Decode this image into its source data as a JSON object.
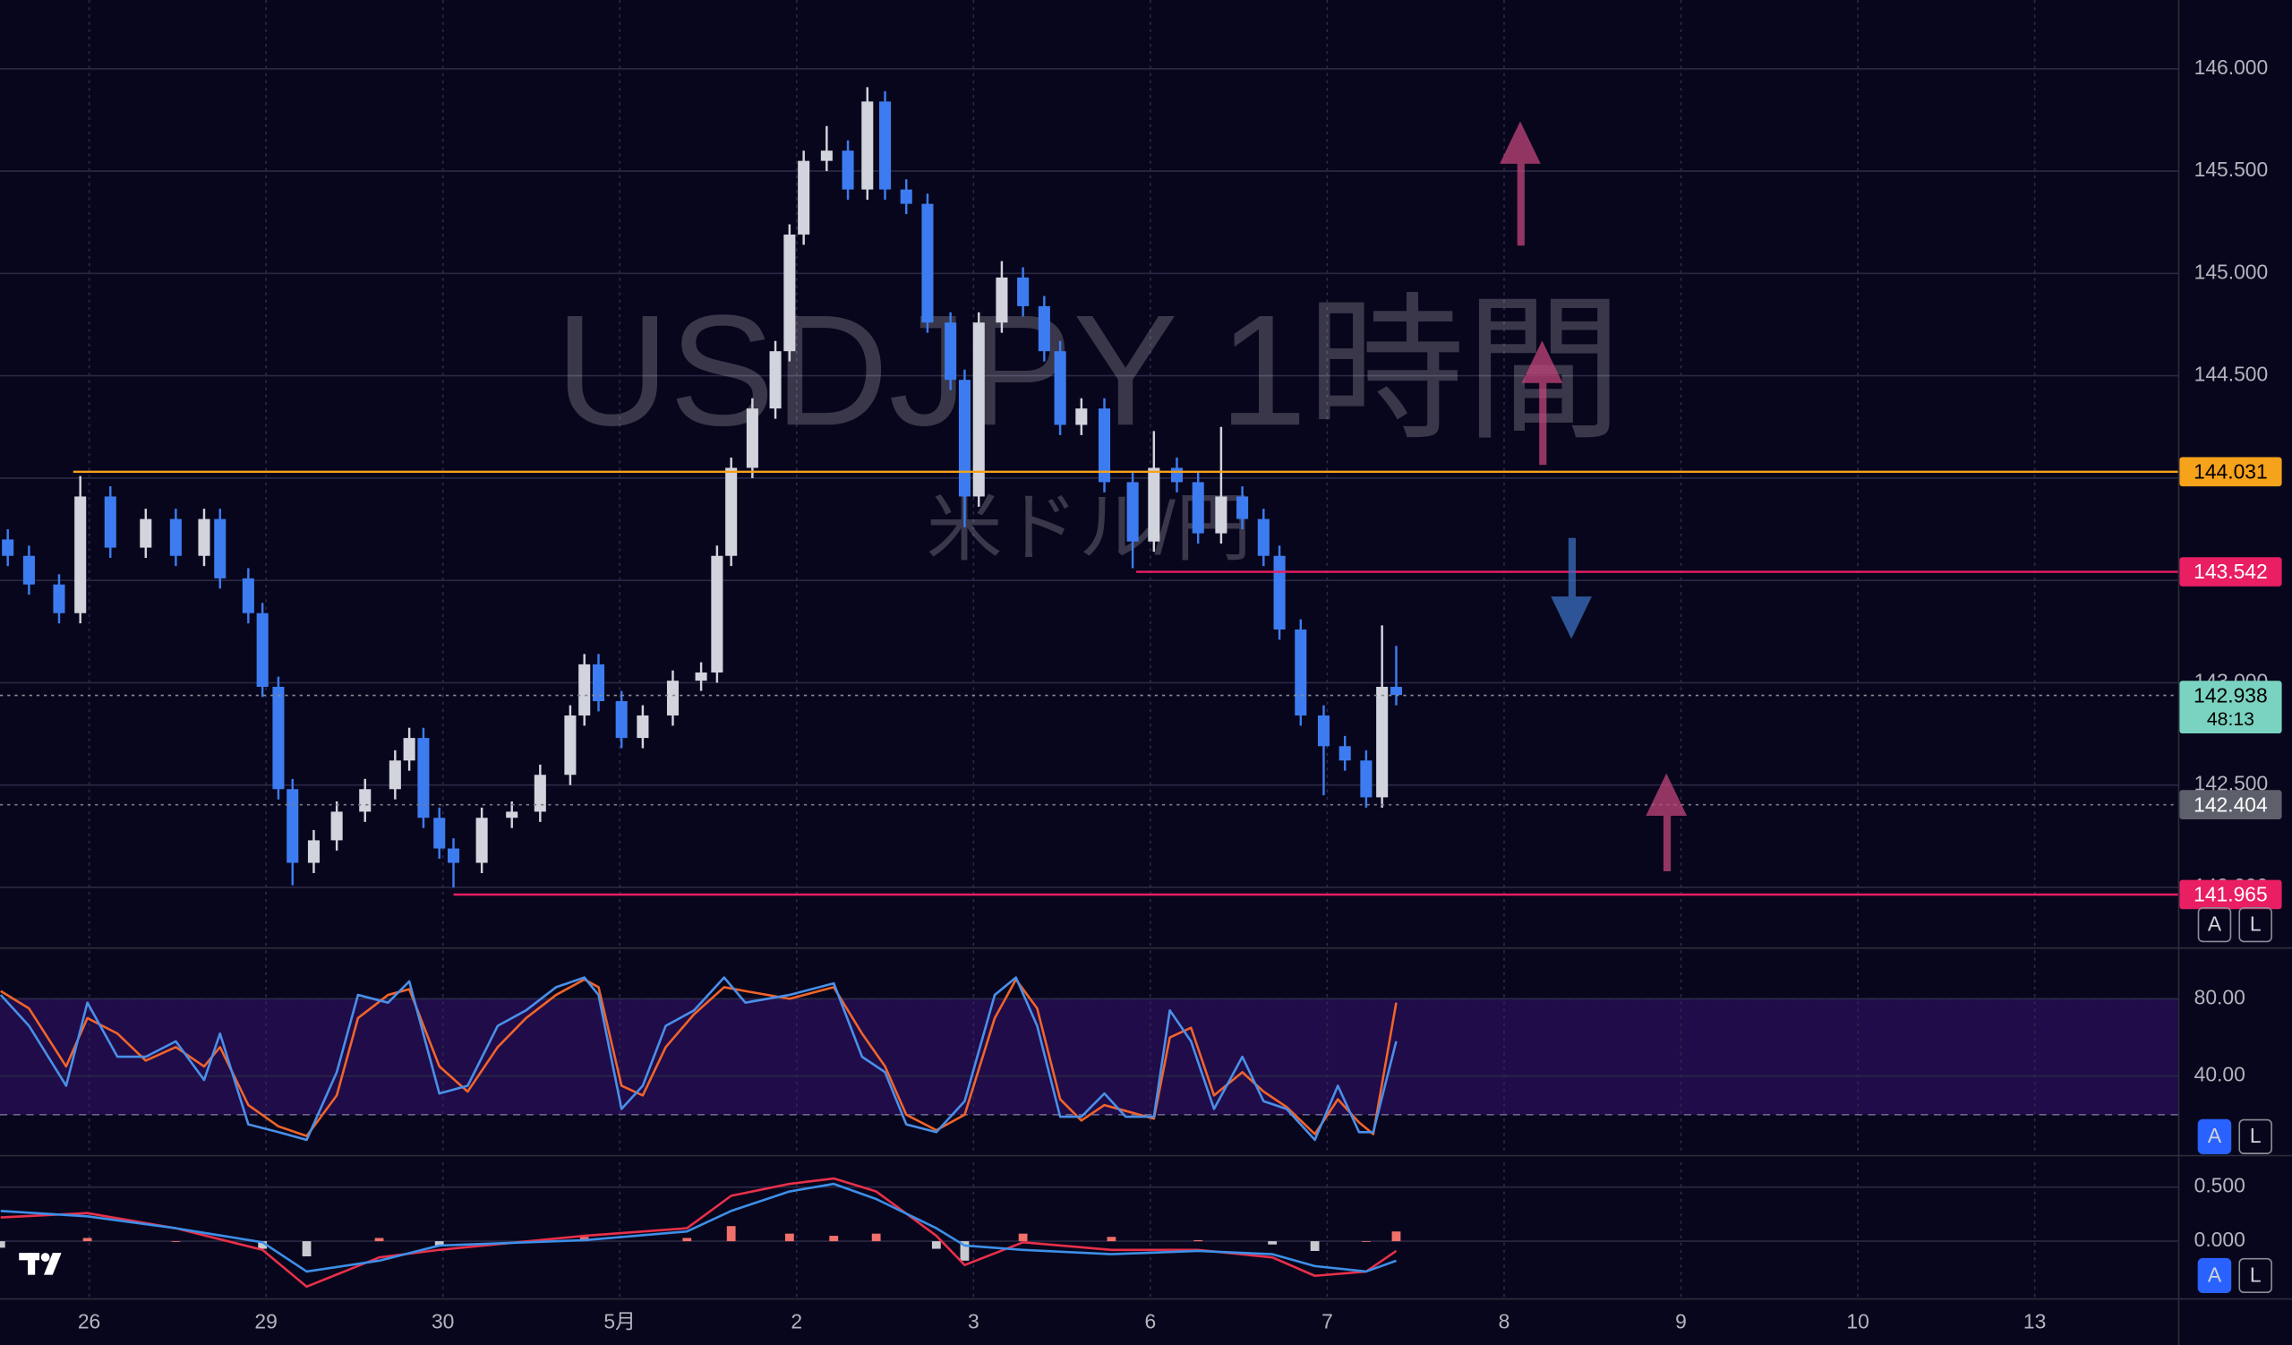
{
  "watermark": {
    "title": "USDJPY 1時間",
    "subtitle": "米ドル/円"
  },
  "pane_buttons": [
    {
      "auto": "A",
      "log": "L"
    },
    {
      "auto": "A",
      "log": "L"
    },
    {
      "auto": "A",
      "log": "L"
    }
  ],
  "chart_data": [
    {
      "type": "candlestick",
      "xlim": [
        -0.504,
        11.81
      ],
      "xticks": [
        {
          "value": 0,
          "label": "26"
        },
        {
          "value": 1,
          "label": "29"
        },
        {
          "value": 2,
          "label": "30"
        },
        {
          "value": 3,
          "label": "5月"
        },
        {
          "value": 4,
          "label": "2"
        },
        {
          "value": 5,
          "label": "3"
        },
        {
          "value": 6,
          "label": "6"
        },
        {
          "value": 7,
          "label": "7"
        },
        {
          "value": 8,
          "label": "8"
        },
        {
          "value": 9,
          "label": "9"
        },
        {
          "value": 10,
          "label": "10"
        },
        {
          "value": 11,
          "label": "13"
        }
      ],
      "ylim": [
        141.707,
        146.336
      ],
      "yticks": [
        {
          "value": 146,
          "label": "146.000"
        },
        {
          "value": 145.5,
          "label": "145.500"
        },
        {
          "value": 145,
          "label": "145.000"
        },
        {
          "value": 144.5,
          "label": "144.500"
        },
        {
          "value": 144,
          "label": "144.000"
        },
        {
          "value": 143.5,
          "label": "143.500"
        },
        {
          "value": 143,
          "label": "143.000"
        },
        {
          "value": 142.5,
          "label": "142.500"
        },
        {
          "value": 142,
          "label": "142.000"
        }
      ],
      "grid": true,
      "up_color": "#d1d4dc",
      "down_color": "#3d7cf0",
      "x": [
        -0.46,
        -0.34,
        -0.17,
        -0.05,
        0.12,
        0.32,
        0.49,
        0.65,
        0.74,
        0.9,
        0.98,
        1.07,
        1.15,
        1.27,
        1.4,
        1.56,
        1.73,
        1.81,
        1.89,
        1.98,
        2.06,
        2.22,
        2.39,
        2.55,
        2.72,
        2.8,
        2.88,
        3.01,
        3.13,
        3.3,
        3.46,
        3.55,
        3.63,
        3.75,
        3.88,
        3.96,
        4.04,
        4.17,
        4.29,
        4.4,
        4.5,
        4.62,
        4.74,
        4.87,
        4.95,
        5.03,
        5.16,
        5.28,
        5.4,
        5.49,
        5.61,
        5.74,
        5.9,
        6.02,
        6.15,
        6.27,
        6.4,
        6.52,
        6.64,
        6.73,
        6.85,
        6.98,
        7.1,
        7.22,
        7.31,
        7.39
      ],
      "open": [
        143.7,
        143.62,
        143.48,
        143.34,
        143.91,
        143.66,
        143.8,
        143.62,
        143.8,
        143.51,
        143.34,
        142.98,
        142.48,
        142.12,
        142.23,
        142.37,
        142.48,
        142.62,
        142.73,
        142.34,
        142.19,
        142.12,
        142.34,
        142.37,
        142.55,
        142.84,
        143.09,
        142.91,
        142.73,
        142.84,
        143.01,
        143.05,
        143.62,
        144.05,
        144.34,
        144.62,
        145.19,
        145.55,
        145.6,
        145.41,
        145.84,
        145.41,
        145.34,
        144.76,
        144.48,
        143.91,
        144.76,
        144.98,
        144.84,
        144.62,
        144.26,
        144.34,
        143.98,
        143.69,
        144.05,
        143.98,
        143.73,
        143.91,
        143.8,
        143.62,
        143.26,
        142.84,
        142.69,
        142.62,
        142.44,
        142.98
      ],
      "high": [
        143.75,
        143.67,
        143.53,
        144.01,
        143.96,
        143.85,
        143.85,
        143.85,
        143.85,
        143.56,
        143.39,
        143.03,
        142.53,
        142.28,
        142.42,
        142.53,
        142.67,
        142.78,
        142.78,
        142.39,
        142.24,
        142.39,
        142.42,
        142.6,
        142.89,
        143.14,
        143.14,
        142.96,
        142.89,
        143.06,
        143.1,
        143.67,
        144.1,
        144.39,
        144.67,
        145.24,
        145.6,
        145.72,
        145.65,
        145.91,
        145.89,
        145.46,
        145.39,
        144.81,
        144.53,
        144.81,
        145.06,
        145.03,
        144.89,
        144.67,
        144.39,
        144.39,
        144.03,
        144.23,
        144.1,
        144.03,
        144.25,
        143.96,
        143.85,
        143.67,
        143.31,
        142.89,
        142.74,
        142.67,
        143.28,
        143.18
      ],
      "low": [
        143.57,
        143.43,
        143.29,
        143.29,
        143.61,
        143.61,
        143.57,
        143.57,
        143.46,
        143.29,
        142.93,
        142.43,
        142.01,
        142.07,
        142.18,
        142.32,
        142.43,
        142.57,
        142.29,
        142.14,
        142.0,
        142.07,
        142.29,
        142.32,
        142.5,
        142.79,
        142.86,
        142.68,
        142.68,
        142.79,
        142.96,
        143.0,
        143.57,
        144.0,
        144.29,
        144.57,
        145.14,
        145.5,
        145.36,
        145.36,
        145.36,
        145.29,
        144.71,
        144.43,
        143.76,
        143.86,
        144.71,
        144.79,
        144.57,
        144.21,
        144.21,
        143.93,
        143.56,
        143.64,
        143.93,
        143.68,
        143.68,
        143.75,
        143.57,
        143.21,
        142.79,
        142.45,
        142.57,
        142.39,
        142.39,
        142.89
      ],
      "close": [
        143.62,
        143.48,
        143.34,
        143.91,
        143.66,
        143.8,
        143.62,
        143.8,
        143.51,
        143.34,
        142.98,
        142.48,
        142.12,
        142.23,
        142.37,
        142.48,
        142.62,
        142.73,
        142.34,
        142.19,
        142.12,
        142.34,
        142.37,
        142.55,
        142.84,
        143.09,
        142.91,
        142.73,
        142.84,
        143.01,
        143.05,
        143.62,
        144.05,
        144.34,
        144.62,
        145.19,
        145.55,
        145.6,
        145.41,
        145.84,
        145.41,
        145.34,
        144.76,
        144.48,
        143.91,
        144.76,
        144.98,
        144.84,
        144.62,
        144.26,
        144.34,
        143.98,
        143.69,
        144.05,
        143.98,
        143.73,
        143.91,
        143.8,
        143.62,
        143.26,
        142.84,
        142.69,
        142.62,
        142.44,
        142.98,
        142.94
      ],
      "levels": [
        {
          "value": 144.031,
          "from": -0.09,
          "color": "#f7a21b",
          "text_color": "#000000"
        },
        {
          "value": 143.542,
          "from": 5.92,
          "color": "#e91e63",
          "text_color": "#ffffff"
        },
        {
          "value": 141.965,
          "from": 2.06,
          "color": "#e91e63",
          "text_color": "#ffffff"
        }
      ],
      "last_price": {
        "value": 142.938,
        "countdown": "48:13",
        "color": "#7ad3c0"
      },
      "marker": {
        "value": 142.404,
        "color": "#5d606b"
      }
    },
    {
      "type": "line",
      "xlim": [
        -0.504,
        11.81
      ],
      "ylim": [
        -0.8,
        105.1
      ],
      "yticks": [
        {
          "value": 80,
          "label": "80.00"
        },
        {
          "value": 40,
          "label": "40.00"
        }
      ],
      "band": [
        20,
        80
      ],
      "band_color": "#2a0f5c",
      "x": [
        -0.5,
        -0.34,
        -0.13,
        -0.01,
        0.16,
        0.32,
        0.49,
        0.65,
        0.74,
        0.9,
        1.07,
        1.23,
        1.4,
        1.52,
        1.69,
        1.81,
        1.98,
        2.14,
        2.31,
        2.47,
        2.64,
        2.8,
        2.88,
        3.01,
        3.13,
        3.26,
        3.42,
        3.59,
        3.71,
        3.96,
        4.21,
        4.37,
        4.5,
        4.62,
        4.79,
        4.95,
        5.12,
        5.24,
        5.36,
        5.49,
        5.61,
        5.74,
        5.86,
        6.02,
        6.11,
        6.23,
        6.36,
        6.52,
        6.64,
        6.77,
        6.93,
        7.06,
        7.18,
        7.26,
        7.39
      ],
      "series": [
        {
          "color": "#f0642a",
          "values": [
            84,
            75,
            45,
            70,
            62,
            48,
            55,
            45,
            55,
            25,
            14,
            9,
            30,
            70,
            82,
            85,
            45,
            32,
            55,
            70,
            82,
            90,
            86,
            35,
            30,
            55,
            72,
            86,
            84,
            80,
            86,
            62,
            45,
            20,
            12,
            20,
            70,
            90,
            75,
            28,
            17,
            25,
            22,
            18,
            60,
            65,
            30,
            42,
            32,
            24,
            10,
            28,
            16,
            10,
            78
          ]
        },
        {
          "color": "#4a8fe8",
          "values": [
            82,
            66,
            35,
            78,
            50,
            50,
            58,
            38,
            62,
            15,
            11,
            7,
            42,
            82,
            78,
            89,
            31,
            35,
            66,
            74,
            86,
            91,
            82,
            23,
            35,
            66,
            74,
            91,
            78,
            82,
            88,
            50,
            42,
            15,
            11,
            27,
            82,
            91,
            66,
            19,
            19,
            31,
            19,
            19,
            74,
            58,
            23,
            50,
            27,
            23,
            7,
            35,
            11,
            11,
            58
          ]
        }
      ]
    },
    {
      "type": "line",
      "xlim": [
        -0.504,
        11.81
      ],
      "ylim": [
        -0.527,
        0.73
      ],
      "yticks": [
        {
          "value": 0.5,
          "label": "0.500"
        },
        {
          "value": 0,
          "label": "0.000"
        }
      ],
      "x": [
        -0.5,
        -0.01,
        0.49,
        0.98,
        1.23,
        1.64,
        1.98,
        2.8,
        3.38,
        3.63,
        3.96,
        4.21,
        4.45,
        4.79,
        4.95,
        5.28,
        5.78,
        6.27,
        6.69,
        6.93,
        7.22,
        7.39
      ],
      "histogram": {
        "up_color": "#f0706a",
        "down_color": "#c8cad0",
        "values": [
          -0.06,
          0.03,
          0,
          -0.07,
          -0.14,
          0.03,
          -0.04,
          0.04,
          0.03,
          0.14,
          0.07,
          0.05,
          0.07,
          -0.07,
          -0.18,
          0.07,
          0.04,
          0.01,
          -0.03,
          -0.09,
          0,
          0.09
        ]
      },
      "series": [
        {
          "color": "#e8304a",
          "values": [
            0.22,
            0.26,
            0.12,
            -0.08,
            -0.42,
            -0.15,
            -0.08,
            0.05,
            0.12,
            0.42,
            0.53,
            0.58,
            0.46,
            0.05,
            -0.22,
            -0.01,
            -0.08,
            -0.08,
            -0.15,
            -0.32,
            -0.28,
            -0.09
          ]
        },
        {
          "color": "#3d8fe8",
          "values": [
            0.28,
            0.23,
            0.12,
            -0.01,
            -0.28,
            -0.18,
            -0.04,
            0.01,
            0.09,
            0.28,
            0.46,
            0.53,
            0.39,
            0.12,
            -0.04,
            -0.08,
            -0.12,
            -0.09,
            -0.12,
            -0.23,
            -0.28,
            -0.18
          ]
        }
      ]
    }
  ]
}
